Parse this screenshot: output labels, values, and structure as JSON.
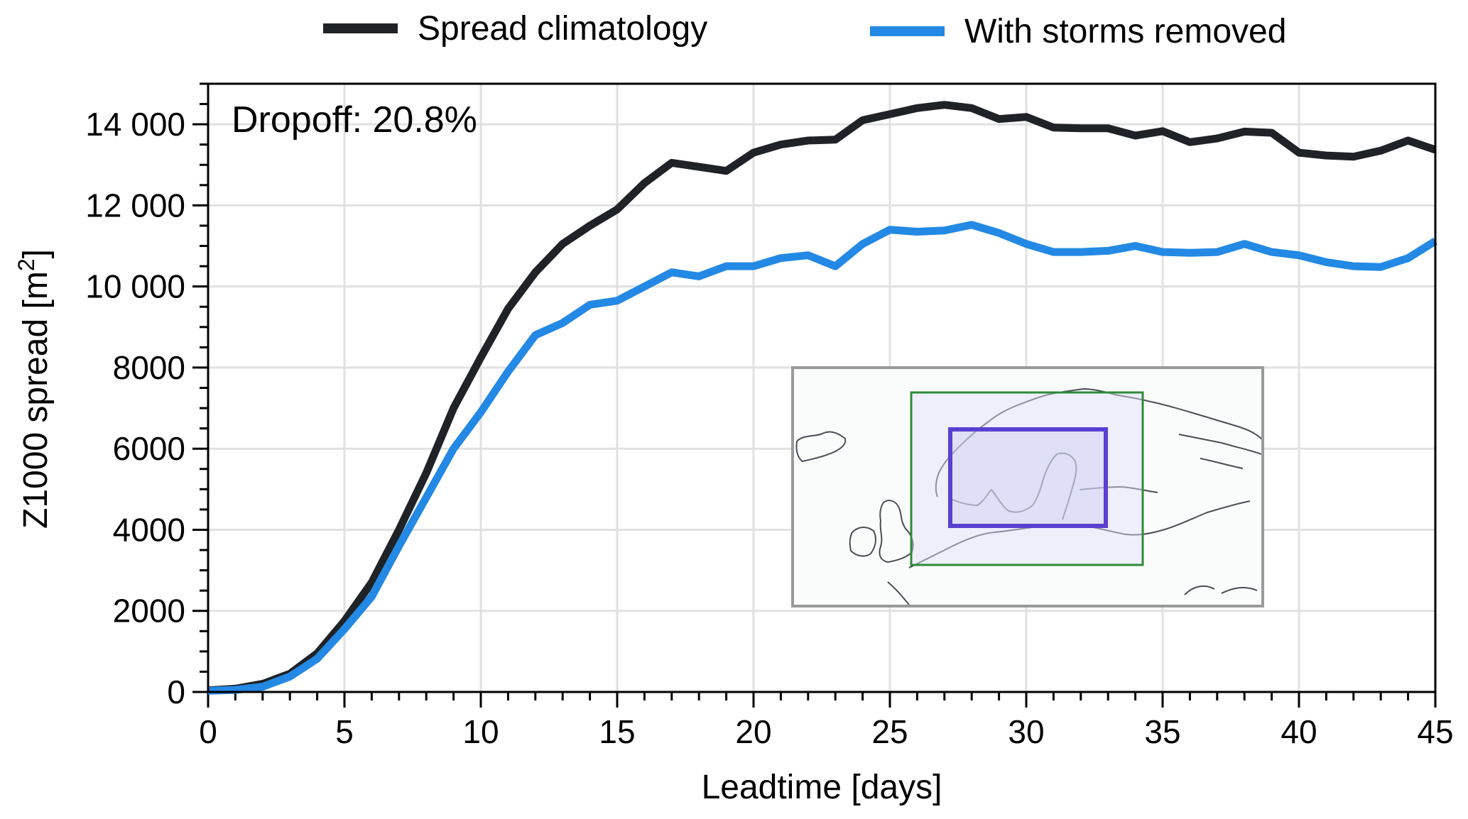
{
  "chart_data": {
    "type": "line",
    "title": "",
    "xlabel": "Leadtime [days]",
    "ylabel": "Z1000 spread [m²]",
    "ylabel_main": "Z1000 spread [m",
    "ylabel_sup": "2",
    "ylabel_tail": "]",
    "xlim": [
      0,
      45
    ],
    "ylim": [
      0,
      15000
    ],
    "xticks": [
      0,
      5,
      10,
      15,
      20,
      25,
      30,
      35,
      40,
      45
    ],
    "xtick_labels": [
      "0",
      "5",
      "10",
      "15",
      "20",
      "25",
      "30",
      "35",
      "40",
      "45"
    ],
    "yticks": [
      0,
      2000,
      4000,
      6000,
      8000,
      10000,
      12000,
      14000
    ],
    "ytick_labels": [
      "0",
      "2000",
      "4000",
      "6000",
      "8000",
      "10 000",
      "12 000",
      "14 000"
    ],
    "x_minor_step": 1,
    "y_minor_step": 500,
    "grid": true,
    "legend_position": "top-center (outside)",
    "annotation": "Dropoff: 20.8%",
    "x": [
      0,
      1,
      2,
      3,
      4,
      5,
      6,
      7,
      8,
      9,
      10,
      11,
      12,
      13,
      14,
      15,
      16,
      17,
      18,
      19,
      20,
      21,
      22,
      23,
      24,
      25,
      26,
      27,
      28,
      29,
      30,
      31,
      32,
      33,
      34,
      35,
      36,
      37,
      38,
      39,
      40,
      41,
      42,
      43,
      44,
      45
    ],
    "series": [
      {
        "name": "Spread climatology",
        "color": "#1f2226",
        "values": [
          40,
          80,
          200,
          450,
          950,
          1750,
          2700,
          4000,
          5400,
          7000,
          8250,
          9450,
          10350,
          11050,
          11500,
          11900,
          12550,
          13050,
          12950,
          12850,
          13300,
          13500,
          13600,
          13620,
          14100,
          14250,
          14400,
          14480,
          14400,
          14130,
          14180,
          13920,
          13900,
          13900,
          13720,
          13830,
          13560,
          13650,
          13820,
          13790,
          13300,
          13230,
          13200,
          13350,
          13600,
          13370
        ]
      },
      {
        "name": "With storms removed",
        "color": "#2389e4",
        "values": [
          30,
          50,
          130,
          380,
          820,
          1550,
          2350,
          3600,
          4800,
          6000,
          6900,
          7900,
          8800,
          9100,
          9550,
          9650,
          10000,
          10350,
          10250,
          10500,
          10500,
          10700,
          10770,
          10500,
          11050,
          11400,
          11350,
          11380,
          11520,
          11320,
          11050,
          10850,
          10850,
          10880,
          11000,
          10850,
          10830,
          10850,
          11050,
          10850,
          10770,
          10600,
          10500,
          10480,
          10700,
          11120
        ]
      }
    ],
    "inset": {
      "description": "Map of northern Europe / Scandinavia with nested region boxes",
      "outer_region_color": "#2e8b3a",
      "inner_region_color": "#5a3fd0",
      "frame_color": "#9a9a9a"
    }
  }
}
